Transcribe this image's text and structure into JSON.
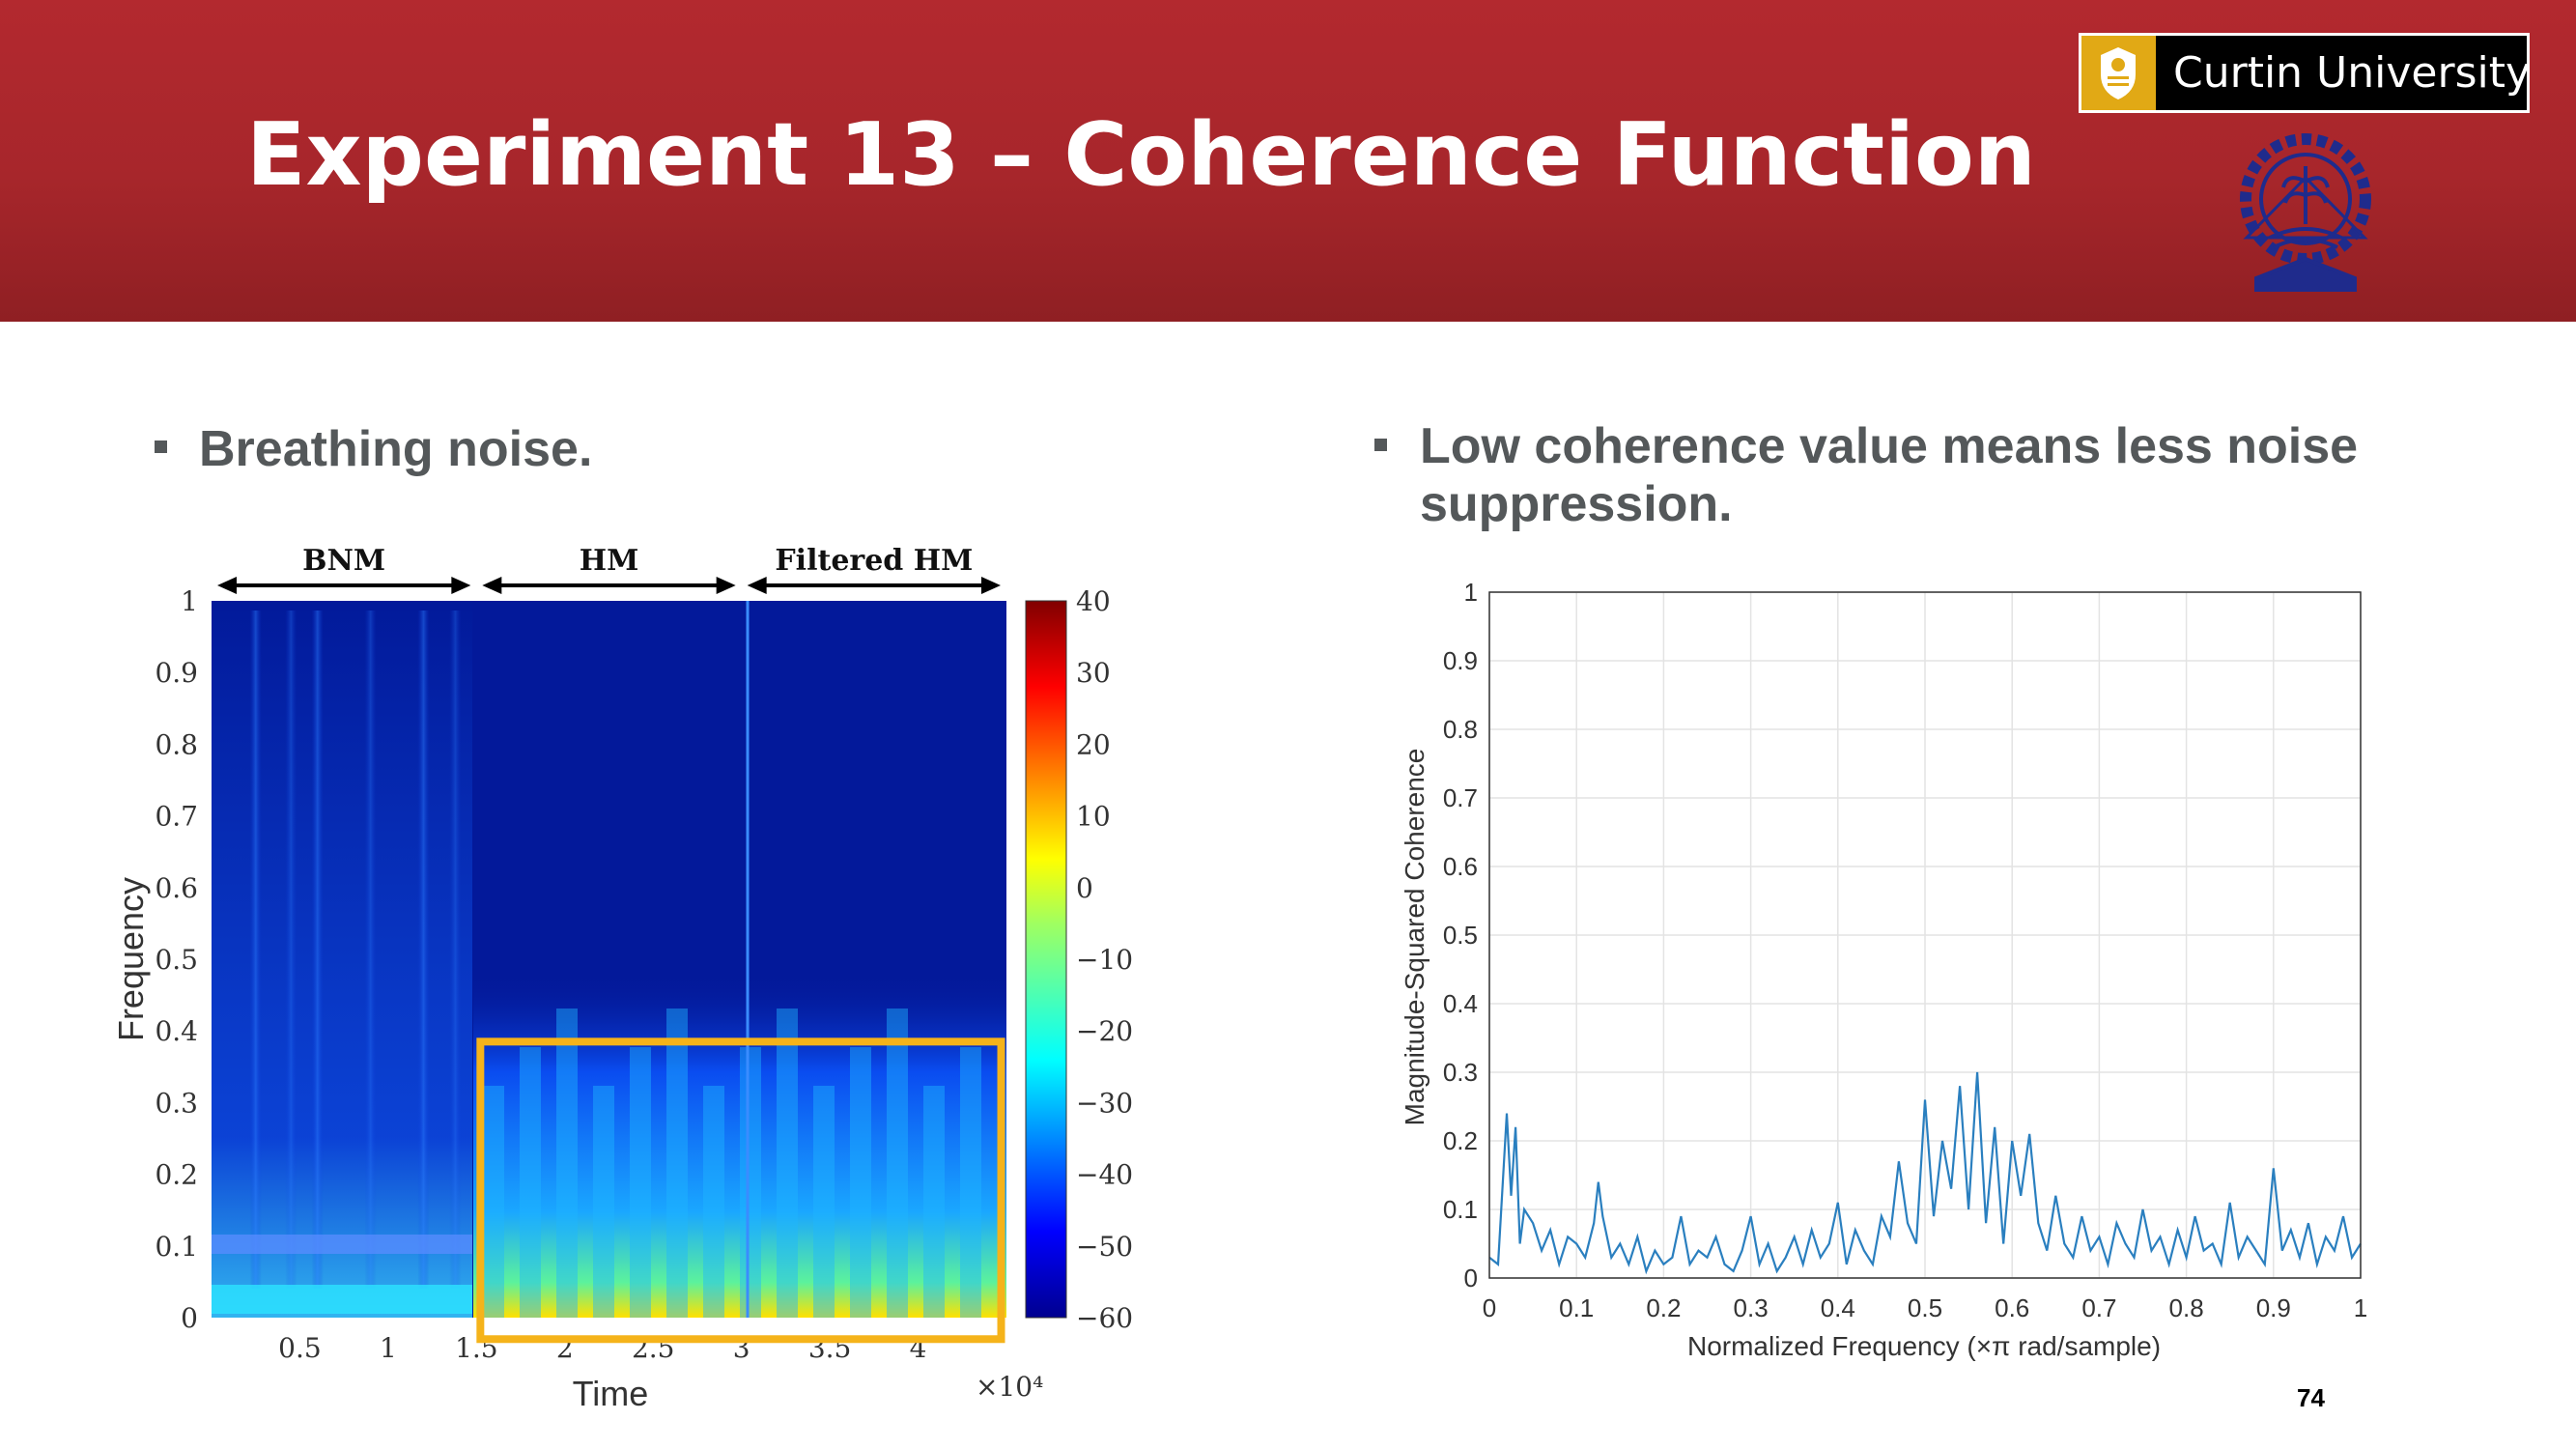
{
  "slide": {
    "title": "Experiment 13 – Coherence Function",
    "logo_text": "Curtin University",
    "page_number": "74",
    "colors": {
      "header": "#b3292f",
      "bullet_text": "#54585a",
      "logo_gold": "#e1a915",
      "seal_blue": "#1f2b8c"
    }
  },
  "left_panel": {
    "bullet": "Breathing noise."
  },
  "right_panel": {
    "bullet_line1": "Low coherence value means less noise",
    "bullet_line2": "suppression."
  },
  "chart_data": [
    {
      "type": "heatmap",
      "xlabel": "Time",
      "ylabel": "Frequency",
      "x_multiplier": "×10⁴",
      "xlim": [
        0,
        45000
      ],
      "ylim": [
        0,
        1
      ],
      "x_ticks": [
        "0.5",
        "1",
        "1.5",
        "2",
        "2.5",
        "3",
        "3.5",
        "4"
      ],
      "y_ticks": [
        "0",
        "0.1",
        "0.2",
        "0.3",
        "0.4",
        "0.5",
        "0.6",
        "0.7",
        "0.8",
        "0.9",
        "1"
      ],
      "segments": [
        {
          "label": "BNM",
          "range": [
            0,
            15000
          ]
        },
        {
          "label": "HM",
          "range": [
            15000,
            30000
          ]
        },
        {
          "label": "Filtered HM",
          "range": [
            30000,
            45000
          ]
        }
      ],
      "colorbar": {
        "range": [
          -60,
          40
        ],
        "ticks": [
          "40",
          "30",
          "20",
          "10",
          "0",
          "−10",
          "−20",
          "−30",
          "−40",
          "−50",
          "−60"
        ]
      },
      "highlight_box": {
        "x_range": [
          15000,
          44700
        ],
        "y_range": [
          -0.03,
          0.385
        ],
        "color": "#f5b31a"
      }
    },
    {
      "type": "line",
      "xlabel": "Normalized Frequency  (×π rad/sample)",
      "ylabel": "Magnitude-Squared Coherence",
      "xlim": [
        0,
        1
      ],
      "ylim": [
        0,
        1
      ],
      "x_ticks": [
        "0",
        "0.1",
        "0.2",
        "0.3",
        "0.4",
        "0.5",
        "0.6",
        "0.7",
        "0.8",
        "0.9",
        "1"
      ],
      "y_ticks": [
        "0",
        "0.1",
        "0.2",
        "0.3",
        "0.4",
        "0.5",
        "0.6",
        "0.7",
        "0.8",
        "0.9",
        "1"
      ],
      "grid": true,
      "line_color": "#2a7fbf",
      "x": [
        0,
        0.01,
        0.02,
        0.025,
        0.03,
        0.035,
        0.04,
        0.05,
        0.06,
        0.07,
        0.08,
        0.09,
        0.1,
        0.11,
        0.12,
        0.125,
        0.13,
        0.14,
        0.15,
        0.16,
        0.17,
        0.18,
        0.19,
        0.2,
        0.21,
        0.22,
        0.23,
        0.24,
        0.25,
        0.26,
        0.27,
        0.28,
        0.29,
        0.3,
        0.31,
        0.32,
        0.33,
        0.34,
        0.35,
        0.36,
        0.37,
        0.38,
        0.39,
        0.4,
        0.41,
        0.42,
        0.43,
        0.44,
        0.45,
        0.46,
        0.47,
        0.48,
        0.49,
        0.5,
        0.51,
        0.52,
        0.53,
        0.54,
        0.55,
        0.56,
        0.57,
        0.58,
        0.59,
        0.6,
        0.61,
        0.62,
        0.63,
        0.64,
        0.65,
        0.66,
        0.67,
        0.68,
        0.69,
        0.7,
        0.71,
        0.72,
        0.73,
        0.74,
        0.75,
        0.76,
        0.77,
        0.78,
        0.79,
        0.8,
        0.81,
        0.82,
        0.83,
        0.84,
        0.85,
        0.86,
        0.87,
        0.88,
        0.89,
        0.9,
        0.91,
        0.92,
        0.93,
        0.94,
        0.95,
        0.96,
        0.97,
        0.98,
        0.99,
        1
      ],
      "y": [
        0.03,
        0.02,
        0.24,
        0.12,
        0.22,
        0.05,
        0.1,
        0.08,
        0.04,
        0.07,
        0.02,
        0.06,
        0.05,
        0.03,
        0.08,
        0.14,
        0.09,
        0.03,
        0.05,
        0.02,
        0.06,
        0.01,
        0.04,
        0.02,
        0.03,
        0.09,
        0.02,
        0.04,
        0.03,
        0.06,
        0.02,
        0.01,
        0.04,
        0.09,
        0.02,
        0.05,
        0.01,
        0.03,
        0.06,
        0.02,
        0.07,
        0.03,
        0.05,
        0.11,
        0.02,
        0.07,
        0.04,
        0.02,
        0.09,
        0.06,
        0.17,
        0.08,
        0.05,
        0.26,
        0.09,
        0.2,
        0.13,
        0.28,
        0.1,
        0.3,
        0.08,
        0.22,
        0.05,
        0.2,
        0.12,
        0.21,
        0.08,
        0.04,
        0.12,
        0.05,
        0.03,
        0.09,
        0.04,
        0.06,
        0.02,
        0.08,
        0.05,
        0.03,
        0.1,
        0.04,
        0.06,
        0.02,
        0.07,
        0.03,
        0.09,
        0.04,
        0.05,
        0.02,
        0.11,
        0.03,
        0.06,
        0.04,
        0.02,
        0.16,
        0.04,
        0.07,
        0.03,
        0.08,
        0.02,
        0.06,
        0.04,
        0.09,
        0.03,
        0.05
      ]
    }
  ]
}
